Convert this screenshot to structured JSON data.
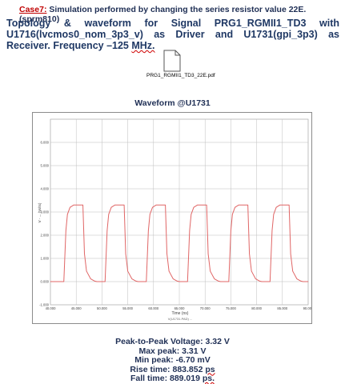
{
  "header": {
    "case_label": "Case7:",
    "case_text": " Simulation performed by changing the series resistor value 22E. (sprm810)",
    "title_main": "Topology & waveform for Signal PRG1_RGMII1_TD3 with U1716(lvcmos0_nom_3p3_v) as Driver and U1731(gpi_3p3) as Receiver. Frequency –125 ",
    "title_unit": "MHz."
  },
  "attachment": {
    "icon": "document-icon",
    "file_name": "PRG1_RGMII1_TD3_22E.pdf"
  },
  "waveform": {
    "title": "Waveform @U1731"
  },
  "chart_data": {
    "type": "line",
    "title": "Waveform @U1731",
    "xlabel": "Time (ns)",
    "ylabel": "V - ... (Volts)",
    "xlim": [
      40,
      90
    ],
    "ylim": [
      -1,
      7
    ],
    "x_ticks": [
      "40.000",
      "45.000",
      "50.000",
      "55.000",
      "60.000",
      "65.000",
      "70.000",
      "75.000",
      "80.000",
      "85.000",
      "90.000"
    ],
    "y_ticks": [
      "-1.000",
      "0.000",
      "1.000",
      "2.000",
      "3.000",
      "4.000",
      "5.000",
      "6.000"
    ],
    "legend": "V(U1731.PAD) ...",
    "grid": true,
    "series": [
      {
        "color": "#e06666",
        "x": [
          40.0,
          42.6,
          43.0,
          43.3,
          43.8,
          44.5,
          45.6,
          46.3,
          46.6,
          47.0,
          47.8,
          48.6,
          49.0,
          50.6,
          51.0,
          51.3,
          51.8,
          52.5,
          53.6,
          54.3,
          54.6,
          55.0,
          55.8,
          56.6,
          57.0,
          58.6,
          59.0,
          59.3,
          59.8,
          60.5,
          61.6,
          62.3,
          62.6,
          63.0,
          63.8,
          64.6,
          65.0,
          66.6,
          67.0,
          67.3,
          67.8,
          68.5,
          69.6,
          70.3,
          70.6,
          71.0,
          71.8,
          72.6,
          73.0,
          74.6,
          75.0,
          75.3,
          75.8,
          76.5,
          77.6,
          78.3,
          78.6,
          79.0,
          79.8,
          80.6,
          81.0,
          82.6,
          83.0,
          83.3,
          83.8,
          84.5,
          85.6,
          86.3,
          86.6,
          87.0,
          87.8,
          88.6,
          89.0,
          90.0
        ],
        "y": [
          0.0,
          0.0,
          2.2,
          2.9,
          3.2,
          3.3,
          3.3,
          3.3,
          1.2,
          0.45,
          0.12,
          0.02,
          0.0,
          0.0,
          2.2,
          2.9,
          3.2,
          3.3,
          3.3,
          3.3,
          1.2,
          0.45,
          0.12,
          0.02,
          0.0,
          0.0,
          2.2,
          2.9,
          3.2,
          3.3,
          3.3,
          3.3,
          1.2,
          0.45,
          0.12,
          0.02,
          0.0,
          0.0,
          2.2,
          2.9,
          3.2,
          3.3,
          3.3,
          3.3,
          1.2,
          0.45,
          0.12,
          0.02,
          0.0,
          0.0,
          2.2,
          2.9,
          3.2,
          3.3,
          3.3,
          3.3,
          1.2,
          0.45,
          0.12,
          0.02,
          0.0,
          0.0,
          2.2,
          2.9,
          3.2,
          3.3,
          3.3,
          3.3,
          1.2,
          0.45,
          0.12,
          0.02,
          0.0,
          0.0
        ]
      }
    ]
  },
  "results": {
    "pk2pk": "Peak-to-Peak Voltage: 3.32 V",
    "max_peak": "Max peak: 3.31 V",
    "min_peak": "Min peak: -6.70 mV",
    "rise_prefix": "Rise time: 883.852 ",
    "rise_unit": "ps",
    "fall_prefix": "Fall time: 889.019 ",
    "fall_unit": "ps."
  }
}
